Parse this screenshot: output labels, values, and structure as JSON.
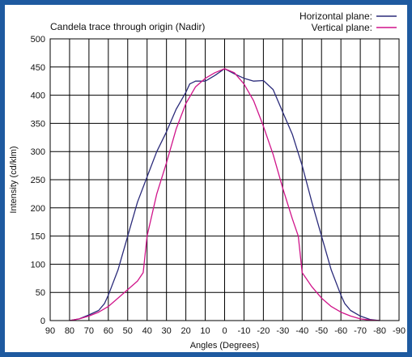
{
  "chart_data": {
    "type": "line",
    "title": "Candela trace through origin (Nadir)",
    "xlabel": "Angles (Degrees)",
    "ylabel": "Intensity (cd/klm)",
    "x_range": [
      90,
      -90
    ],
    "ylim": [
      0,
      500
    ],
    "x_ticks": [
      "90",
      "80",
      "70",
      "60",
      "50",
      "40",
      "30",
      "20",
      "10",
      "0",
      "-10",
      "-20",
      "-30",
      "-40",
      "-50",
      "-60",
      "-70",
      "-80",
      "-90"
    ],
    "y_ticks": [
      "0",
      "50",
      "100",
      "150",
      "200",
      "250",
      "300",
      "350",
      "400",
      "450",
      "500"
    ],
    "grid": true,
    "legend_position": "top-right",
    "series": [
      {
        "name": "Horizontal plane:",
        "color": "#2b2b7a",
        "points": [
          [
            80,
            0
          ],
          [
            75,
            3
          ],
          [
            70,
            10
          ],
          [
            65,
            18
          ],
          [
            62,
            30
          ],
          [
            60,
            45
          ],
          [
            55,
            90
          ],
          [
            50,
            150
          ],
          [
            45,
            210
          ],
          [
            40,
            255
          ],
          [
            35,
            300
          ],
          [
            30,
            335
          ],
          [
            25,
            375
          ],
          [
            20,
            405
          ],
          [
            18,
            420
          ],
          [
            15,
            425
          ],
          [
            10,
            425
          ],
          [
            5,
            435
          ],
          [
            0,
            447
          ],
          [
            -5,
            438
          ],
          [
            -10,
            430
          ],
          [
            -15,
            425
          ],
          [
            -20,
            426
          ],
          [
            -25,
            410
          ],
          [
            -30,
            370
          ],
          [
            -35,
            330
          ],
          [
            -40,
            275
          ],
          [
            -45,
            210
          ],
          [
            -50,
            150
          ],
          [
            -55,
            90
          ],
          [
            -60,
            45
          ],
          [
            -62,
            30
          ],
          [
            -65,
            18
          ],
          [
            -70,
            8
          ],
          [
            -75,
            2
          ],
          [
            -80,
            0
          ]
        ]
      },
      {
        "name": "Vertical plane:",
        "color": "#d0148a",
        "points": [
          [
            80,
            0
          ],
          [
            75,
            3
          ],
          [
            70,
            8
          ],
          [
            65,
            15
          ],
          [
            60,
            25
          ],
          [
            55,
            40
          ],
          [
            50,
            55
          ],
          [
            45,
            70
          ],
          [
            42,
            85
          ],
          [
            40,
            150
          ],
          [
            35,
            225
          ],
          [
            30,
            280
          ],
          [
            25,
            340
          ],
          [
            20,
            385
          ],
          [
            15,
            415
          ],
          [
            10,
            430
          ],
          [
            5,
            440
          ],
          [
            0,
            447
          ],
          [
            -5,
            440
          ],
          [
            -10,
            420
          ],
          [
            -15,
            390
          ],
          [
            -20,
            345
          ],
          [
            -25,
            295
          ],
          [
            -30,
            235
          ],
          [
            -35,
            180
          ],
          [
            -38,
            150
          ],
          [
            -40,
            85
          ],
          [
            -45,
            60
          ],
          [
            -50,
            40
          ],
          [
            -55,
            25
          ],
          [
            -60,
            15
          ],
          [
            -65,
            8
          ],
          [
            -70,
            3
          ],
          [
            -75,
            1
          ],
          [
            -80,
            0
          ]
        ]
      }
    ]
  }
}
